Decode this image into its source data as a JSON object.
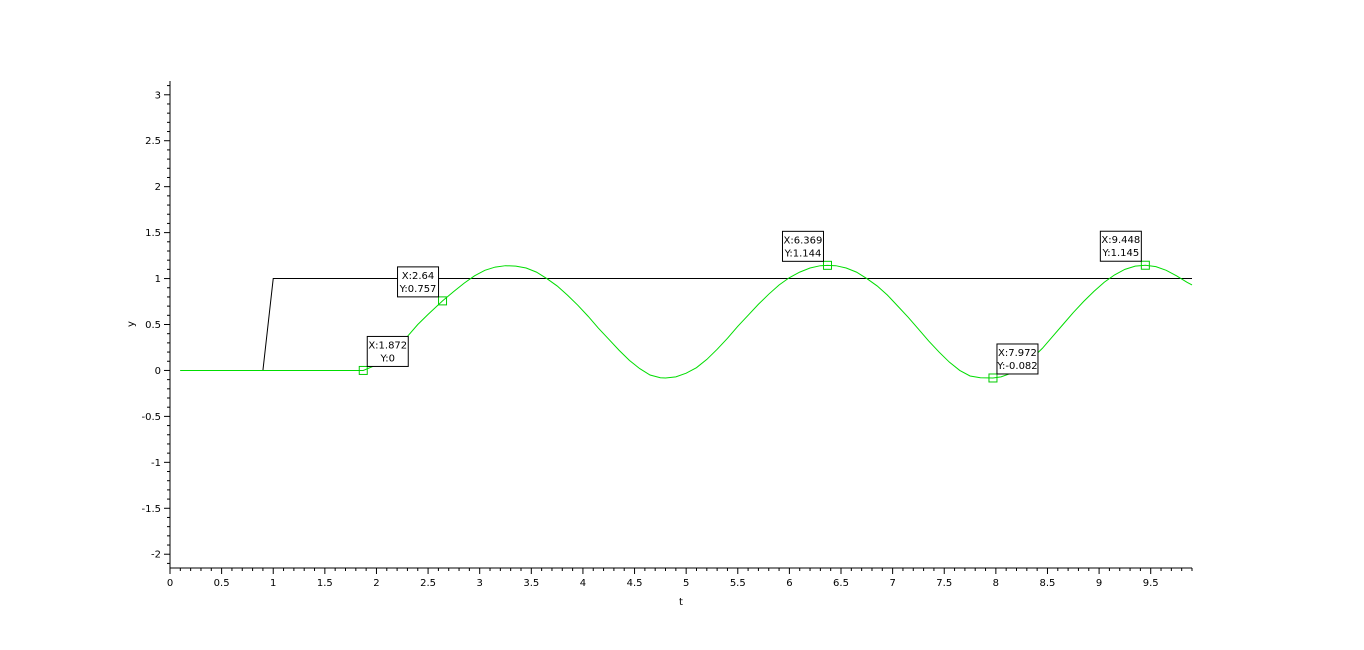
{
  "chart_data": {
    "type": "line",
    "xlabel": "t",
    "ylabel": "y",
    "xlim": [
      0,
      9.9
    ],
    "ylim": [
      -2.15,
      3.15
    ],
    "x_ticks": [
      0,
      0.5,
      1,
      1.5,
      2,
      2.5,
      3,
      3.5,
      4,
      4.5,
      5,
      5.5,
      6,
      6.5,
      7,
      7.5,
      8,
      8.5,
      9,
      9.5
    ],
    "x_tick_labels": [
      "0",
      "0.5",
      "1",
      "1.5",
      "2",
      "2.5",
      "3",
      "3.5",
      "4",
      "4.5",
      "5",
      "5.5",
      "6",
      "6.5",
      "7",
      "7.5",
      "8",
      "8.5",
      "9",
      "9.5"
    ],
    "y_ticks": [
      -2,
      -1.5,
      -1,
      -0.5,
      0,
      0.5,
      1,
      1.5,
      2,
      2.5,
      3
    ],
    "y_tick_labels": [
      "-2",
      "-1.5",
      "-1",
      "-0.5",
      "0",
      "0.5",
      "1",
      "1.5",
      "2",
      "2.5",
      "3"
    ],
    "grid": false,
    "series": [
      {
        "color": "#000000",
        "x": [
          0.1,
          0.9,
          1.0,
          9.9
        ],
        "y": [
          0,
          0,
          1,
          1
        ]
      },
      {
        "color": "#00dd00",
        "x": [
          0.1,
          0.3,
          0.5,
          0.7,
          0.9,
          1.1,
          1.3,
          1.5,
          1.7,
          1.872,
          2.0,
          2.1,
          2.2,
          2.3,
          2.4,
          2.5,
          2.64,
          2.75,
          2.85,
          2.95,
          3.05,
          3.15,
          3.25,
          3.35,
          3.45,
          3.55,
          3.65,
          3.75,
          3.85,
          3.95,
          4.05,
          4.15,
          4.25,
          4.35,
          4.45,
          4.55,
          4.65,
          4.75,
          4.8,
          4.9,
          5.0,
          5.1,
          5.2,
          5.3,
          5.4,
          5.5,
          5.6,
          5.7,
          5.8,
          5.9,
          6.0,
          6.1,
          6.2,
          6.3,
          6.369,
          6.45,
          6.55,
          6.65,
          6.75,
          6.85,
          6.95,
          7.05,
          7.15,
          7.25,
          7.35,
          7.45,
          7.55,
          7.65,
          7.75,
          7.85,
          7.972,
          8.05,
          8.15,
          8.25,
          8.35,
          8.45,
          8.55,
          8.65,
          8.75,
          8.85,
          8.95,
          9.05,
          9.15,
          9.25,
          9.35,
          9.448,
          9.55,
          9.65,
          9.75,
          9.85,
          9.9
        ],
        "y": [
          0,
          0,
          0,
          0,
          0,
          0,
          0,
          0,
          0,
          0,
          0.06,
          0.14,
          0.25,
          0.37,
          0.5,
          0.61,
          0.757,
          0.86,
          0.95,
          1.03,
          1.09,
          1.125,
          1.14,
          1.135,
          1.115,
          1.07,
          1.0,
          0.92,
          0.82,
          0.71,
          0.59,
          0.46,
          0.34,
          0.22,
          0.11,
          0.02,
          -0.05,
          -0.08,
          -0.082,
          -0.07,
          -0.03,
          0.03,
          0.12,
          0.23,
          0.35,
          0.48,
          0.6,
          0.72,
          0.83,
          0.93,
          1.01,
          1.07,
          1.115,
          1.14,
          1.144,
          1.14,
          1.115,
          1.07,
          1.0,
          0.92,
          0.82,
          0.7,
          0.58,
          0.45,
          0.32,
          0.2,
          0.09,
          0.0,
          -0.06,
          -0.08,
          -0.082,
          -0.07,
          -0.03,
          0.04,
          0.13,
          0.24,
          0.37,
          0.5,
          0.63,
          0.75,
          0.86,
          0.96,
          1.04,
          1.1,
          1.135,
          1.145,
          1.13,
          1.09,
          1.03,
          0.96,
          0.93
        ]
      }
    ],
    "datatips": [
      {
        "x": 1.872,
        "y": 0,
        "line1": "X:1.872",
        "line2": "Y:0",
        "box_side": "upper-right"
      },
      {
        "x": 2.64,
        "y": 0.757,
        "line1": "X:2.64",
        "line2": "Y:0.757",
        "box_side": "upper-left"
      },
      {
        "x": 6.369,
        "y": 1.144,
        "line1": "X:6.369",
        "line2": "Y:1.144",
        "box_side": "upper-left"
      },
      {
        "x": 7.972,
        "y": -0.082,
        "line1": "X:7.972",
        "line2": "Y:-0.082",
        "box_side": "upper-right"
      },
      {
        "x": 9.448,
        "y": 1.145,
        "line1": "X:9.448",
        "line2": "Y:1.145",
        "box_side": "upper-left"
      }
    ]
  }
}
